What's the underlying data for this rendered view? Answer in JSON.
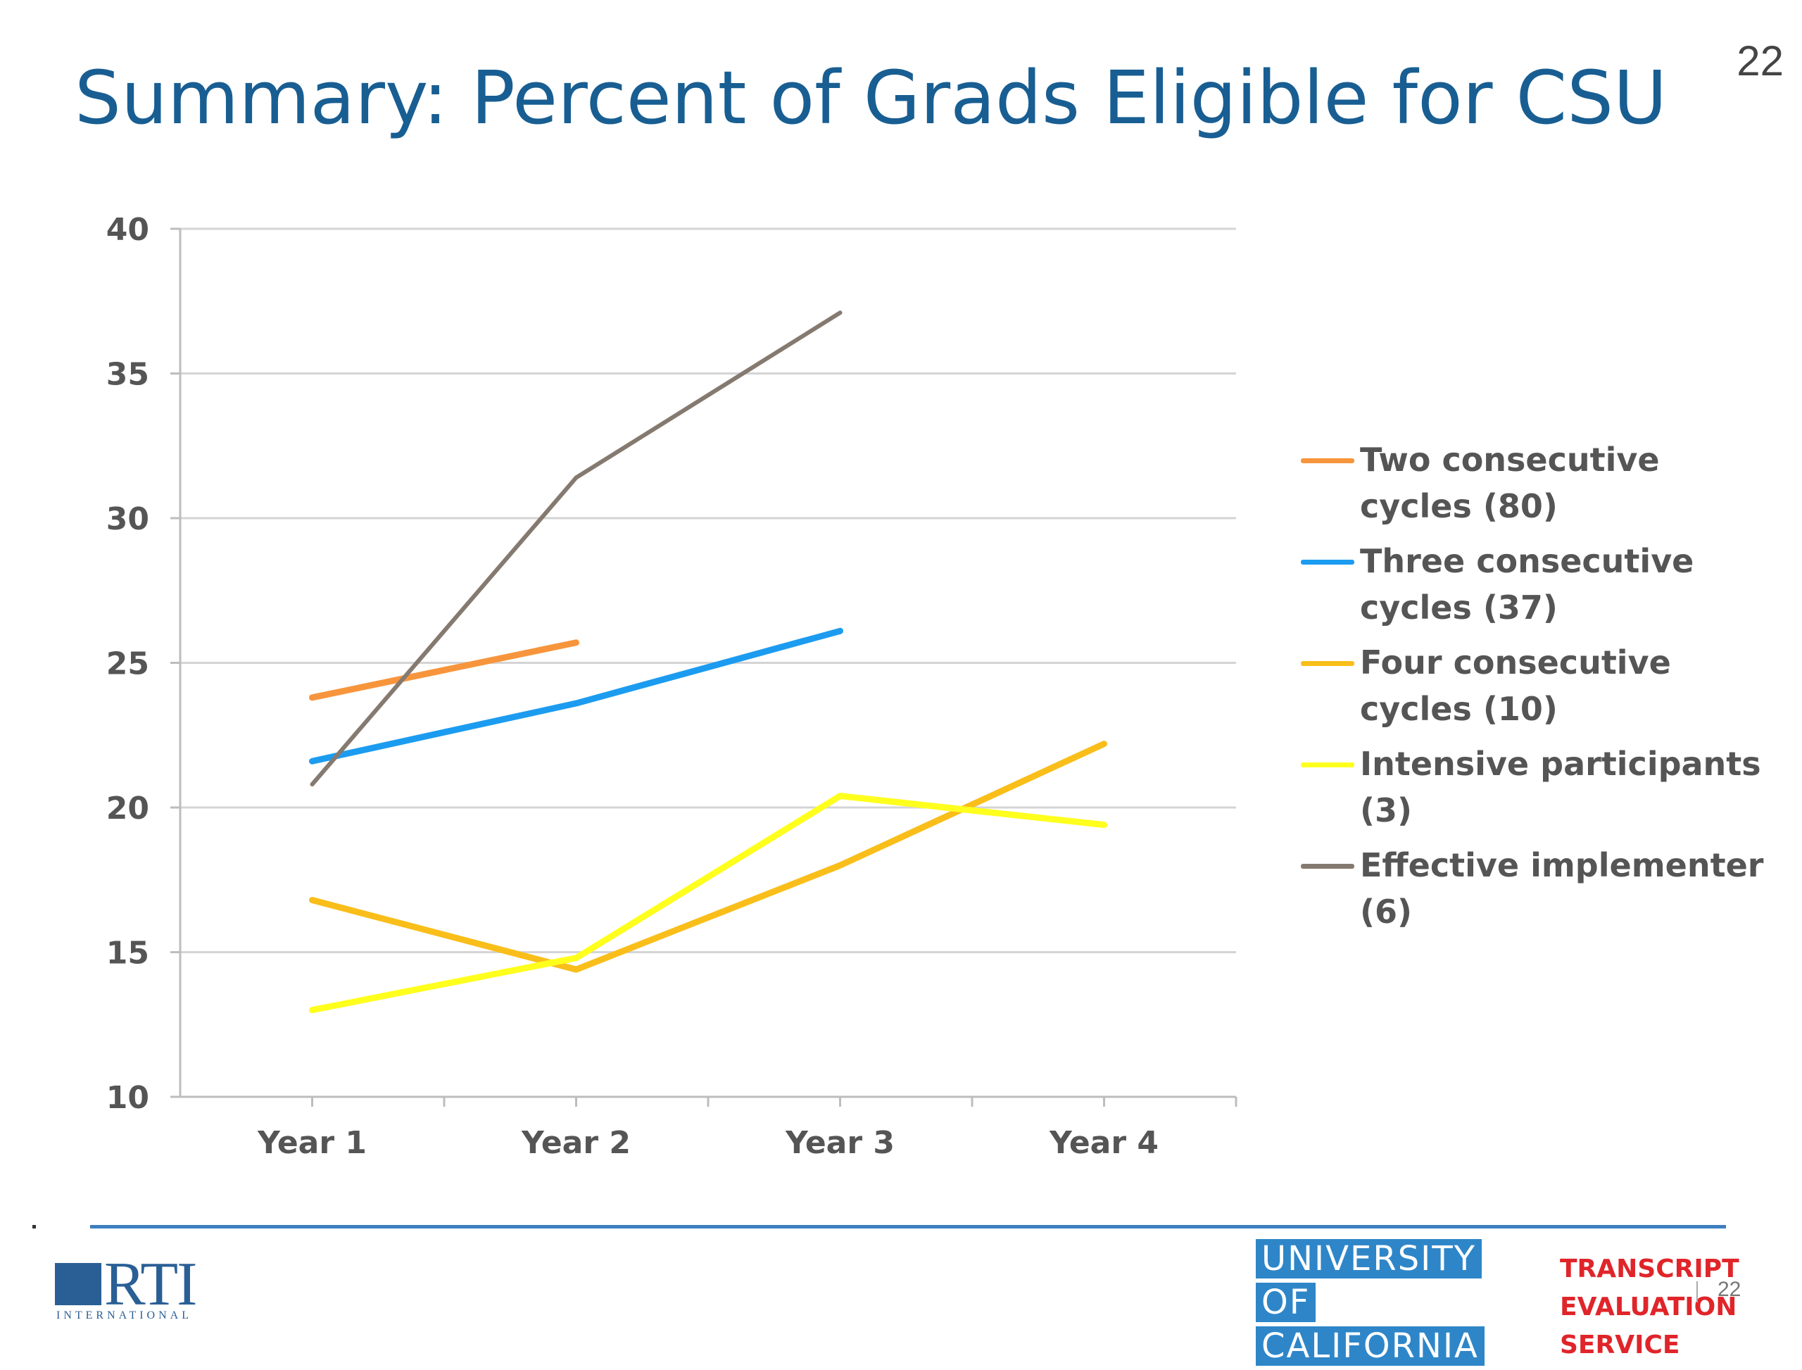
{
  "slide": {
    "title": "Summary: Percent of Grads Eligible for CSU",
    "page_number": "22",
    "footer_small_number": "22"
  },
  "logos": {
    "rti": {
      "name": "RTI",
      "subtitle": "INTERNATIONAL"
    },
    "uc": {
      "lines": [
        "UNIVERSITY",
        "OF",
        "CALIFORNIA"
      ],
      "color": "#2e86c8"
    },
    "tes": {
      "lines": [
        "TRANSCRIPT",
        "EVALUATION",
        "SERVICE"
      ],
      "color": "#e0252a"
    }
  },
  "chart_data": {
    "type": "line",
    "title": "",
    "xlabel": "",
    "ylabel": "",
    "categories": [
      "Year 1",
      "Year 2",
      "Year 3",
      "Year 4"
    ],
    "ylim": [
      10,
      40
    ],
    "yticks": [
      10,
      15,
      20,
      25,
      30,
      35,
      40
    ],
    "grid": true,
    "legend_position": "right",
    "series": [
      {
        "name": "Two consecutive cycles (80)",
        "color": "#f7953c",
        "values": [
          23.8,
          25.7,
          null,
          null
        ]
      },
      {
        "name": "Three consecutive cycles (37)",
        "color": "#1c9cf0",
        "values": [
          21.6,
          23.6,
          26.1,
          null
        ]
      },
      {
        "name": "Four consecutive cycles (10)",
        "color": "#f9be1a",
        "values": [
          16.8,
          14.4,
          18.0,
          22.2
        ]
      },
      {
        "name": "Intensive participants (3)",
        "color": "#ffff1e",
        "values": [
          13.0,
          14.8,
          20.4,
          19.4
        ]
      },
      {
        "name": "Effective implementer (6)",
        "color": "#857a6f",
        "values": [
          20.8,
          31.4,
          37.1,
          null
        ]
      }
    ]
  }
}
